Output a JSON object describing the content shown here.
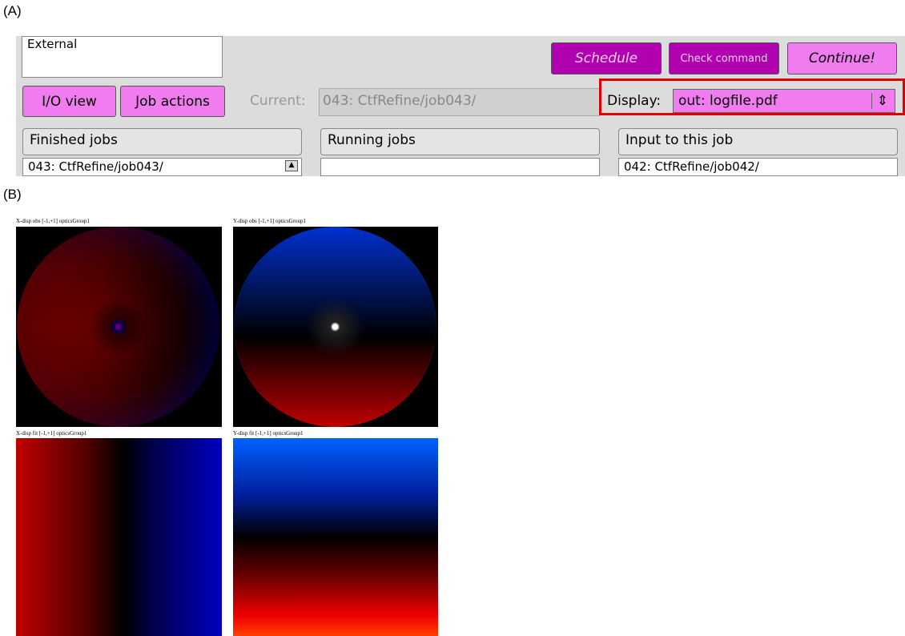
{
  "panel_a": {
    "label": "(A)",
    "external": "External",
    "buttons": {
      "schedule": "Schedule",
      "check_command": "Check command",
      "continue": "Continue!",
      "io_view": "I/O view",
      "job_actions": "Job actions"
    },
    "current": {
      "label": "Current:",
      "value": "043: CtfRefine/job043/"
    },
    "display": {
      "label": "Display:",
      "value": "out: logfile.pdf"
    },
    "lists": [
      {
        "title": "Finished jobs",
        "items": [
          "043: CtfRefine/job043/"
        ]
      },
      {
        "title": "Running jobs",
        "items": []
      },
      {
        "title": "Input to this job",
        "items": [
          "042: CtfRefine/job042/"
        ]
      }
    ]
  },
  "panel_b": {
    "label": "(B)",
    "plots": [
      {
        "caption": "X-disp obs [-1,+1] opticsGroup1"
      },
      {
        "caption": "Y-disp obs [-1,+1] opticsGroup1"
      },
      {
        "caption": "X-disp fit [-1,+1] opticsGroup1"
      },
      {
        "caption": "Y-disp fit [-1,+1] opticsGroup1"
      }
    ]
  }
}
